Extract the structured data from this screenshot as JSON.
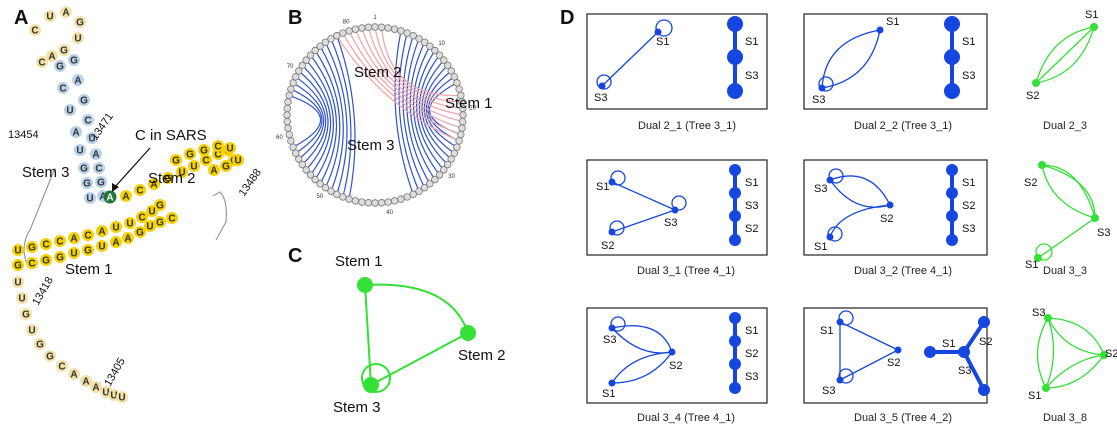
{
  "colors": {
    "blue": "#1646e0",
    "green": "#33e036",
    "yellow": "#f5d200",
    "pale": "#f2e2a8",
    "stemblue": "#b9d2ea",
    "pink": "#f1a2a8",
    "circle_blue": "#2f52cf"
  },
  "panels": {
    "a": "A",
    "b": "B",
    "c": "C",
    "d": "D"
  },
  "panel_a": {
    "stem1": "Stem 1",
    "stem2": "Stem 2",
    "stem3": "Stem 3",
    "c_in_sars": "C in SARS",
    "pos": {
      "p13454": "13454",
      "p13471": "13471",
      "p13488": "13488",
      "p13418": "13418",
      "p13405": "13405"
    },
    "loop_seq": "CUAGUGAC",
    "stem3_left": "GCUAUGGU",
    "stem3_right": "GAGCUACGA",
    "highlight": "A",
    "stem2_top": "GGGCUU",
    "stem2_bottom": "ACAGUUCCCCGA",
    "stem1_top": "UGCCACAUUCUG",
    "stem1_bottom": "GCGGUGUAAGUGC",
    "tail_seq": "UUGUGGCAAAUUU"
  },
  "panel_b": {
    "stem1": "Stem 1",
    "stem2": "Stem 2",
    "stem3": "Stem 3",
    "ticks": [
      "1",
      "10",
      "20",
      "30",
      "40",
      "50",
      "60",
      "70",
      "80"
    ]
  },
  "panel_c": {
    "stem1": "Stem 1",
    "stem2": "Stem 2",
    "stem3": "Stem 3"
  },
  "panel_d": {
    "cells": [
      {
        "caption": "Dual 2_1 (Tree 3_1)",
        "dual_labels": [
          "S1",
          "S3"
        ],
        "tree_labels": [
          "S1",
          "S3"
        ]
      },
      {
        "caption": "Dual 2_2 (Tree 3_1)",
        "dual_labels": [
          "S1",
          "S3"
        ],
        "tree_labels": [
          "S1",
          "S3"
        ]
      },
      {
        "caption": "Dual 2_3",
        "dual_labels": [
          "S1",
          "S2"
        ]
      },
      {
        "caption": "Dual 3_1 (Tree 4_1)",
        "dual_labels": [
          "S1",
          "S3",
          "S2"
        ],
        "tree_labels": [
          "S1",
          "S3",
          "S2"
        ]
      },
      {
        "caption": "Dual 3_2 (Tree 4_1)",
        "dual_labels": [
          "S3",
          "S2",
          "S1"
        ],
        "tree_labels": [
          "S1",
          "S2",
          "S3"
        ]
      },
      {
        "caption": "Dual 3_3",
        "dual_labels": [
          "S2",
          "S3",
          "S1"
        ]
      },
      {
        "caption": "Dual 3_4 (Tree 4_1)",
        "dual_labels": [
          "S3",
          "S2",
          "S1"
        ],
        "tree_labels": [
          "S1",
          "S2",
          "S3"
        ]
      },
      {
        "caption": "Dual 3_5 (Tree 4_2)",
        "dual_labels": [
          "S1",
          "S3",
          "S2"
        ],
        "tree_labels": [
          "S1",
          "S2",
          "S3"
        ]
      },
      {
        "caption": "Dual 3_8",
        "dual_labels": [
          "S3",
          "S2",
          "S1"
        ]
      }
    ]
  }
}
